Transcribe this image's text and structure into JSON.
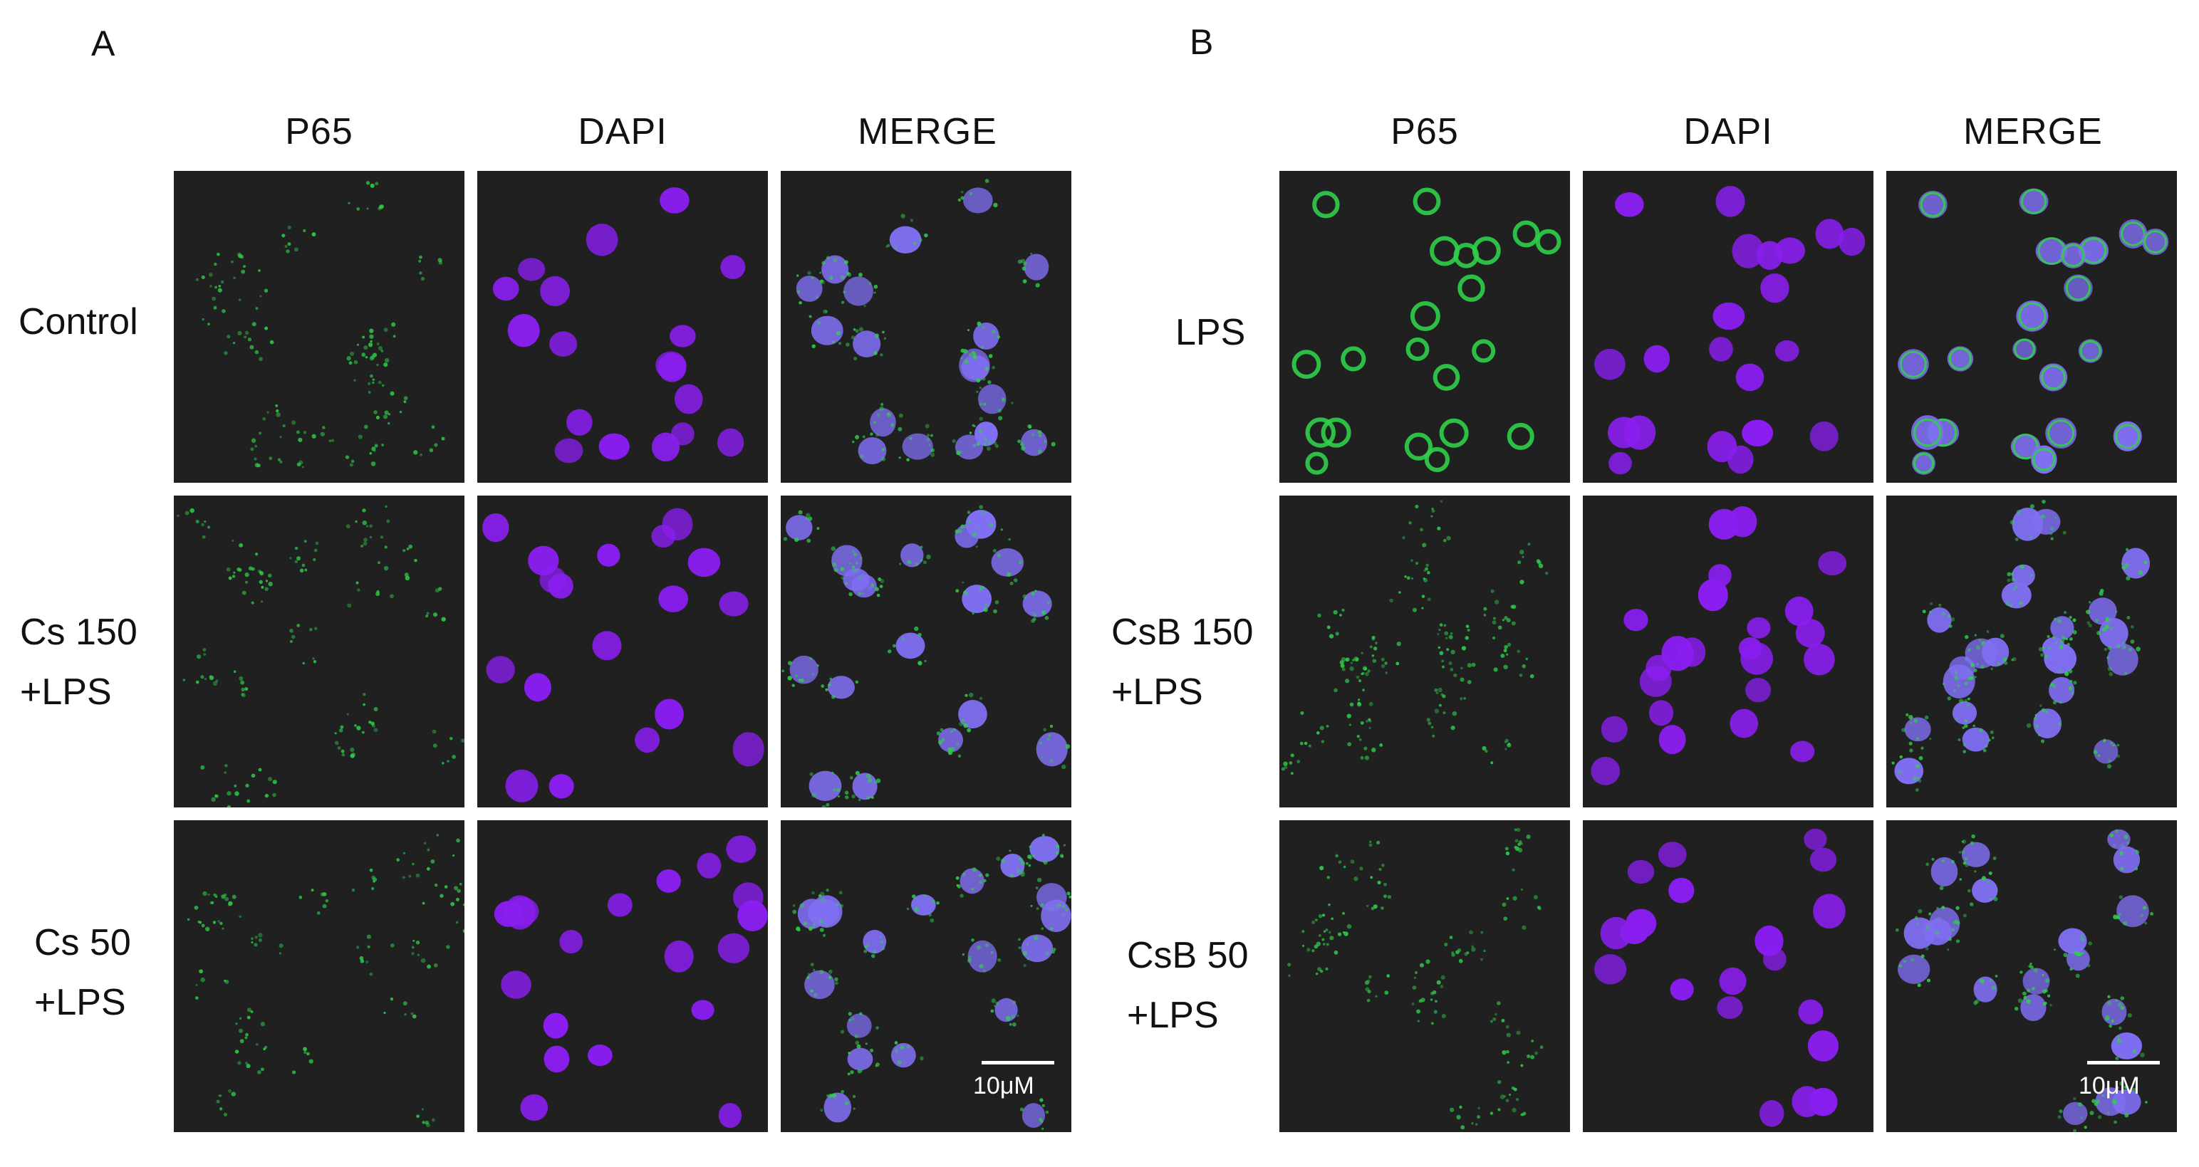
{
  "panels": [
    {
      "letter": "A",
      "columns": [
        "P65",
        "DAPI",
        "MERGE"
      ],
      "rows": [
        {
          "label_lines": [
            "Control"
          ]
        },
        {
          "label_lines": [
            "Cs 150",
            "+LPS"
          ]
        },
        {
          "label_lines": [
            "Cs 50",
            "+LPS"
          ]
        }
      ],
      "scale_label": "10μM"
    },
    {
      "letter": "B",
      "columns": [
        "P65",
        "DAPI",
        "MERGE"
      ],
      "rows": [
        {
          "label_lines": [
            "LPS"
          ]
        },
        {
          "label_lines": [
            "CsB 150",
            "+LPS"
          ]
        },
        {
          "label_lines": [
            "CsB 50",
            "+LPS"
          ]
        }
      ],
      "scale_label": "10μM"
    }
  ],
  "colors": {
    "p65_green": "#2fcf4a",
    "dapi_purple": "#8a1ef0",
    "merge_blue": "#7f6ff2",
    "tile_background": "#202020"
  }
}
